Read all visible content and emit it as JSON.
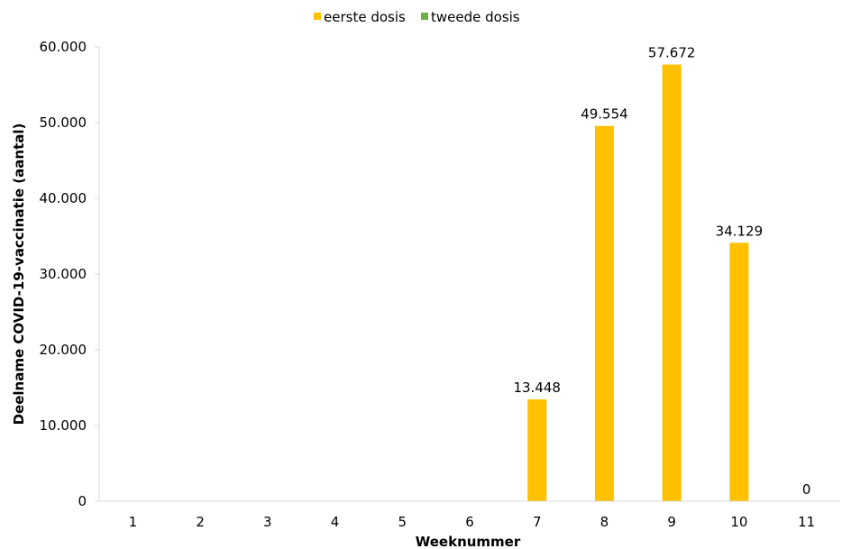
{
  "chart_data": {
    "type": "bar",
    "categories": [
      "1",
      "2",
      "3",
      "4",
      "5",
      "6",
      "7",
      "8",
      "9",
      "10",
      "11"
    ],
    "series": [
      {
        "name": "eerste dosis",
        "color": "#FFC000",
        "values": [
          null,
          null,
          null,
          null,
          null,
          null,
          13448,
          49554,
          57672,
          34129,
          0
        ],
        "labels": [
          "",
          "",
          "",
          "",
          "",
          "",
          "13.448",
          "49.554",
          "57.672",
          "34.129",
          "0"
        ]
      },
      {
        "name": "tweede dosis",
        "color": "#70AD47",
        "values": [
          null,
          null,
          null,
          null,
          null,
          null,
          null,
          null,
          null,
          null,
          null
        ],
        "labels": [
          "",
          "",
          "",
          "",
          "",
          "",
          "",
          "",
          "",
          "",
          ""
        ]
      }
    ],
    "xlabel": "Weeknummer",
    "ylabel": "Deelname COVID-19-vaccinatie  (aantal)",
    "ylim": [
      0,
      60000
    ],
    "yticks": [
      0,
      10000,
      20000,
      30000,
      40000,
      50000,
      60000
    ],
    "ytick_labels": [
      "0",
      "10.000",
      "20.000",
      "30.000",
      "40.000",
      "50.000",
      "60.000"
    ],
    "grid": false,
    "legend": "top-center"
  }
}
